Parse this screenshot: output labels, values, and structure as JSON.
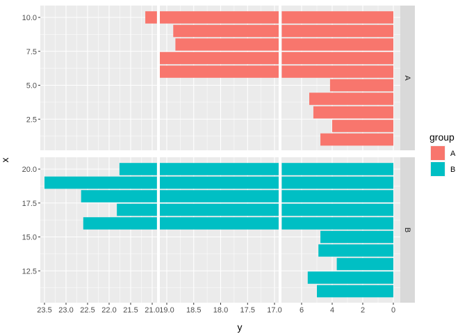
{
  "chart_data": {
    "type": "bar",
    "orientation": "horizontal",
    "xlabel": "y",
    "ylabel": "x",
    "x_axis_reversed": true,
    "x_axis_breaks": [
      [
        0,
        7.3
      ],
      [
        16.92,
        19.13
      ],
      [
        20.89,
        23.6
      ]
    ],
    "x_tick_labels": [
      "23.5",
      "23.0",
      "22.5",
      "22.0",
      "21.5",
      "21.0",
      "19.0",
      "18.5",
      "18.0",
      "17.5",
      "17.0",
      "6",
      "4",
      "2",
      "0"
    ],
    "legend": {
      "title": "group",
      "entries": [
        "A",
        "B"
      ],
      "colors": [
        "#F8766D",
        "#00BFC4"
      ],
      "placement": "right"
    },
    "facets": [
      {
        "label": "A",
        "y_tick_labels": [
          "10.0",
          "7.5",
          "5.0",
          "2.5"
        ],
        "x": [
          1,
          2,
          3,
          4,
          5,
          6,
          7,
          8,
          9,
          10
        ],
        "values": [
          4.77,
          4.0,
          5.23,
          5.5,
          4.14,
          20.0,
          20.0,
          18.84,
          18.88,
          21.16
        ]
      },
      {
        "label": "B",
        "y_tick_labels": [
          "20.0",
          "17.5",
          "15.0",
          "12.5"
        ],
        "x": [
          11,
          12,
          13,
          14,
          15,
          16,
          17,
          18,
          19,
          20
        ],
        "values": [
          5.0,
          5.6,
          3.7,
          4.9,
          4.77,
          22.6,
          21.82,
          22.65,
          23.5,
          21.76
        ]
      }
    ]
  }
}
